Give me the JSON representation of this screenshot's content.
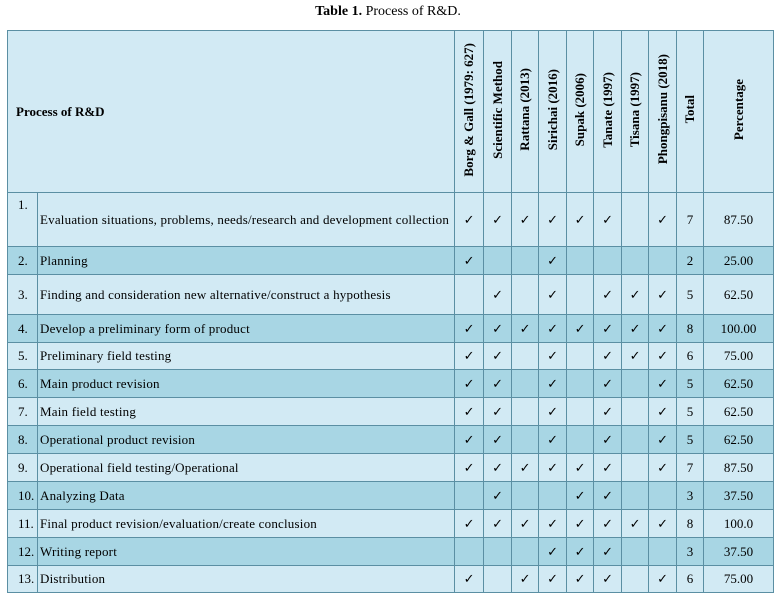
{
  "caption": {
    "label": "Table 1.",
    "text": " Process of R&D."
  },
  "table": {
    "process_header": "Process of R&D",
    "sources": [
      "Borg & Gall (1979: 627)",
      "Scientific Method",
      "Rattana (2013)",
      "Sirichai (2016)",
      "Supak (2006)",
      "Tanate (1997)",
      "Tisana (1997)",
      "Phongpisanu (2018)"
    ],
    "total_header": "Total",
    "percentage_header": "Percentage",
    "check_mark": "✓",
    "rows": [
      {
        "num": "1.",
        "process": "Evaluation situations, problems, needs/research and development collection",
        "checks": [
          1,
          1,
          1,
          1,
          1,
          1,
          0,
          1
        ],
        "total": "7",
        "percentage": "87.50"
      },
      {
        "num": "2.",
        "process": "Planning",
        "checks": [
          1,
          0,
          0,
          1,
          0,
          0,
          0,
          0
        ],
        "total": "2",
        "percentage": "25.00"
      },
      {
        "num": "3.",
        "process": "Finding and consideration new alternative/construct a hypothesis",
        "checks": [
          0,
          1,
          0,
          1,
          0,
          1,
          1,
          1
        ],
        "total": "5",
        "percentage": "62.50"
      },
      {
        "num": "4.",
        "process": "Develop a preliminary form of product",
        "checks": [
          1,
          1,
          1,
          1,
          1,
          1,
          1,
          1
        ],
        "total": "8",
        "percentage": "100.00"
      },
      {
        "num": "5.",
        "process": "Preliminary field testing",
        "checks": [
          1,
          1,
          0,
          1,
          0,
          1,
          1,
          1
        ],
        "total": "6",
        "percentage": "75.00"
      },
      {
        "num": "6.",
        "process": "Main product revision",
        "checks": [
          1,
          1,
          0,
          1,
          0,
          1,
          0,
          1
        ],
        "total": "5",
        "percentage": "62.50"
      },
      {
        "num": "7.",
        "process": "Main field testing",
        "checks": [
          1,
          1,
          0,
          1,
          0,
          1,
          0,
          1
        ],
        "total": "5",
        "percentage": "62.50"
      },
      {
        "num": "8.",
        "process": "Operational product revision",
        "checks": [
          1,
          1,
          0,
          1,
          0,
          1,
          0,
          1
        ],
        "total": "5",
        "percentage": "62.50"
      },
      {
        "num": "9.",
        "process": "Operational field testing/Operational",
        "checks": [
          1,
          1,
          1,
          1,
          1,
          1,
          0,
          1
        ],
        "total": "7",
        "percentage": "87.50"
      },
      {
        "num": "10.",
        "process": "Analyzing Data",
        "checks": [
          0,
          1,
          0,
          0,
          1,
          1,
          0,
          0
        ],
        "total": "3",
        "percentage": "37.50"
      },
      {
        "num": "11.",
        "process": "Final product revision/evaluation/create conclusion",
        "checks": [
          1,
          1,
          1,
          1,
          1,
          1,
          1,
          1
        ],
        "total": "8",
        "percentage": "100.0"
      },
      {
        "num": "12.",
        "process": "Writing report",
        "checks": [
          0,
          0,
          0,
          1,
          1,
          1,
          0,
          0
        ],
        "total": "3",
        "percentage": "37.50"
      },
      {
        "num": "13.",
        "process": "Distribution",
        "checks": [
          1,
          0,
          1,
          1,
          1,
          1,
          0,
          1
        ],
        "total": "6",
        "percentage": "75.00"
      }
    ]
  }
}
